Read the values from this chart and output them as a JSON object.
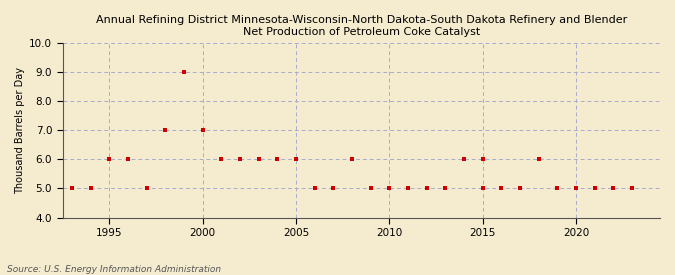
{
  "title_line1": "Annual Refining District Minnesota-Wisconsin-North Dakota-South Dakota Refinery and Blender",
  "title_line2": "Net Production of Petroleum Coke Catalyst",
  "ylabel": "Thousand Barrels per Day",
  "source": "Source: U.S. Energy Information Administration",
  "background_color": "#f5eccf",
  "plot_bg_color": "#f5eccf",
  "marker_color": "#cc0000",
  "grid_color": "#aaaacc",
  "ylim": [
    4.0,
    10.0
  ],
  "xlim": [
    1992.5,
    2024.5
  ],
  "yticks": [
    4.0,
    5.0,
    6.0,
    7.0,
    8.0,
    9.0,
    10.0
  ],
  "xticks": [
    1995,
    2000,
    2005,
    2010,
    2015,
    2020
  ],
  "years": [
    1993,
    1994,
    1995,
    1996,
    1997,
    1998,
    1999,
    2000,
    2001,
    2002,
    2003,
    2004,
    2004,
    2005,
    2006,
    2007,
    2008,
    2009,
    2010,
    2011,
    2012,
    2013,
    2014,
    2015,
    2015,
    2016,
    2017,
    2018,
    2019,
    2020,
    2021,
    2022,
    2023
  ],
  "values": [
    5,
    5,
    6,
    6,
    5,
    7,
    9,
    7,
    6,
    6,
    6,
    6,
    6,
    6,
    5,
    5,
    6,
    5,
    5,
    5,
    5,
    5,
    6,
    6,
    5,
    5,
    5,
    6,
    5,
    5,
    5,
    5,
    5
  ]
}
